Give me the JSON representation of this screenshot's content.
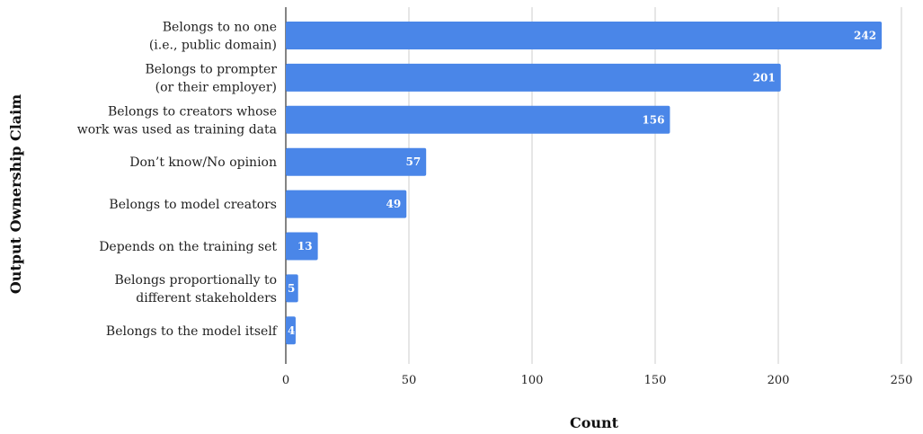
{
  "chart_data": {
    "type": "bar",
    "orientation": "horizontal",
    "categories": [
      "Belongs to no one\n(i.e., public domain)",
      "Belongs to prompter\n(or their employer)",
      "Belongs to creators whose\nwork was used as training data",
      "Don’t know/No opinion",
      "Belongs to model creators",
      "Depends on the training set",
      "Belongs proportionally to\ndifferent stakeholders",
      "Belongs to the model itself"
    ],
    "values": [
      242,
      201,
      156,
      57,
      49,
      13,
      5,
      4
    ],
    "data_labels": [
      "242",
      "201",
      "156",
      "57",
      "49",
      "13",
      "5",
      "4"
    ],
    "xlabel": "Count",
    "ylabel": "Output Ownership Claim",
    "xlim": [
      0,
      250
    ],
    "x_ticks": [
      0,
      50,
      100,
      150,
      200,
      250
    ],
    "x_tick_labels": [
      "0",
      "50",
      "100",
      "150",
      "200",
      "250"
    ],
    "grid": "vertical",
    "legend": "none",
    "bar_color": "#4a86e8"
  }
}
